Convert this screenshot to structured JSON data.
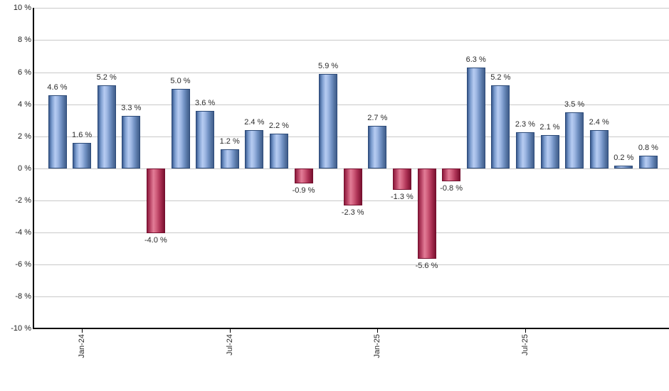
{
  "chart_data": {
    "type": "bar",
    "title": "",
    "xlabel": "",
    "ylabel": "",
    "ylim": [
      -10,
      10
    ],
    "y_axis": {
      "min": -10,
      "max": 10,
      "step": 2,
      "unit": "%",
      "tick_labels": [
        "10 %",
        "8 %",
        "6 %",
        "4 %",
        "2 %",
        "0 %",
        "-2 %",
        "-4 %",
        "-6 %",
        "-8 %",
        "-10 %"
      ]
    },
    "x_axis": {
      "ticks": [
        {
          "bar_index": 1,
          "label": "Jan-24"
        },
        {
          "bar_index": 7,
          "label": "Jul-24"
        },
        {
          "bar_index": 13,
          "label": "Jan-25"
        },
        {
          "bar_index": 19,
          "label": "Jul-25"
        }
      ]
    },
    "bars": [
      {
        "value": 4.6,
        "label": "4.6 %",
        "color": "blue"
      },
      {
        "value": 1.6,
        "label": "1.6 %",
        "color": "blue"
      },
      {
        "value": 5.2,
        "label": "5.2 %",
        "color": "blue"
      },
      {
        "value": 3.3,
        "label": "3.3 %",
        "color": "blue"
      },
      {
        "value": -4.0,
        "label": "-4.0 %",
        "color": "red"
      },
      {
        "value": 5.0,
        "label": "5.0 %",
        "color": "blue"
      },
      {
        "value": 3.6,
        "label": "3.6 %",
        "color": "blue"
      },
      {
        "value": 1.2,
        "label": "1.2 %",
        "color": "blue"
      },
      {
        "value": 2.4,
        "label": "2.4 %",
        "color": "blue"
      },
      {
        "value": 2.2,
        "label": "2.2 %",
        "color": "blue"
      },
      {
        "value": -0.9,
        "label": "-0.9 %",
        "color": "red"
      },
      {
        "value": 5.9,
        "label": "5.9 %",
        "color": "blue"
      },
      {
        "value": -2.3,
        "label": "-2.3 %",
        "color": "red"
      },
      {
        "value": 2.7,
        "label": "2.7 %",
        "color": "blue"
      },
      {
        "value": -1.3,
        "label": "-1.3 %",
        "color": "red"
      },
      {
        "value": -5.6,
        "label": "-5.6 %",
        "color": "red"
      },
      {
        "value": -0.8,
        "label": "-0.8 %",
        "color": "red"
      },
      {
        "value": 6.3,
        "label": "6.3 %",
        "color": "blue"
      },
      {
        "value": 5.2,
        "label": "5.2 %",
        "color": "blue"
      },
      {
        "value": 2.3,
        "label": "2.3 %",
        "color": "blue"
      },
      {
        "value": 2.1,
        "label": "2.1 %",
        "color": "blue"
      },
      {
        "value": 3.5,
        "label": "3.5 %",
        "color": "blue"
      },
      {
        "value": 2.4,
        "label": "2.4 %",
        "color": "blue"
      },
      {
        "value": 0.2,
        "label": "0.2 %",
        "color": "blue"
      },
      {
        "value": 0.8,
        "label": "0.8 %",
        "color": "blue"
      }
    ],
    "colors": {
      "positive_bar": "#7495c5",
      "negative_bar": "#c5476b",
      "gridline": "#c9c9c9",
      "axis": "#000000",
      "text": "#2b2b2b",
      "background": "#ffffff"
    },
    "layout_hints": {
      "grid": "horizontal",
      "legend": "none",
      "bar_label_position": "outside-end",
      "x_label_rotation": -90
    }
  }
}
